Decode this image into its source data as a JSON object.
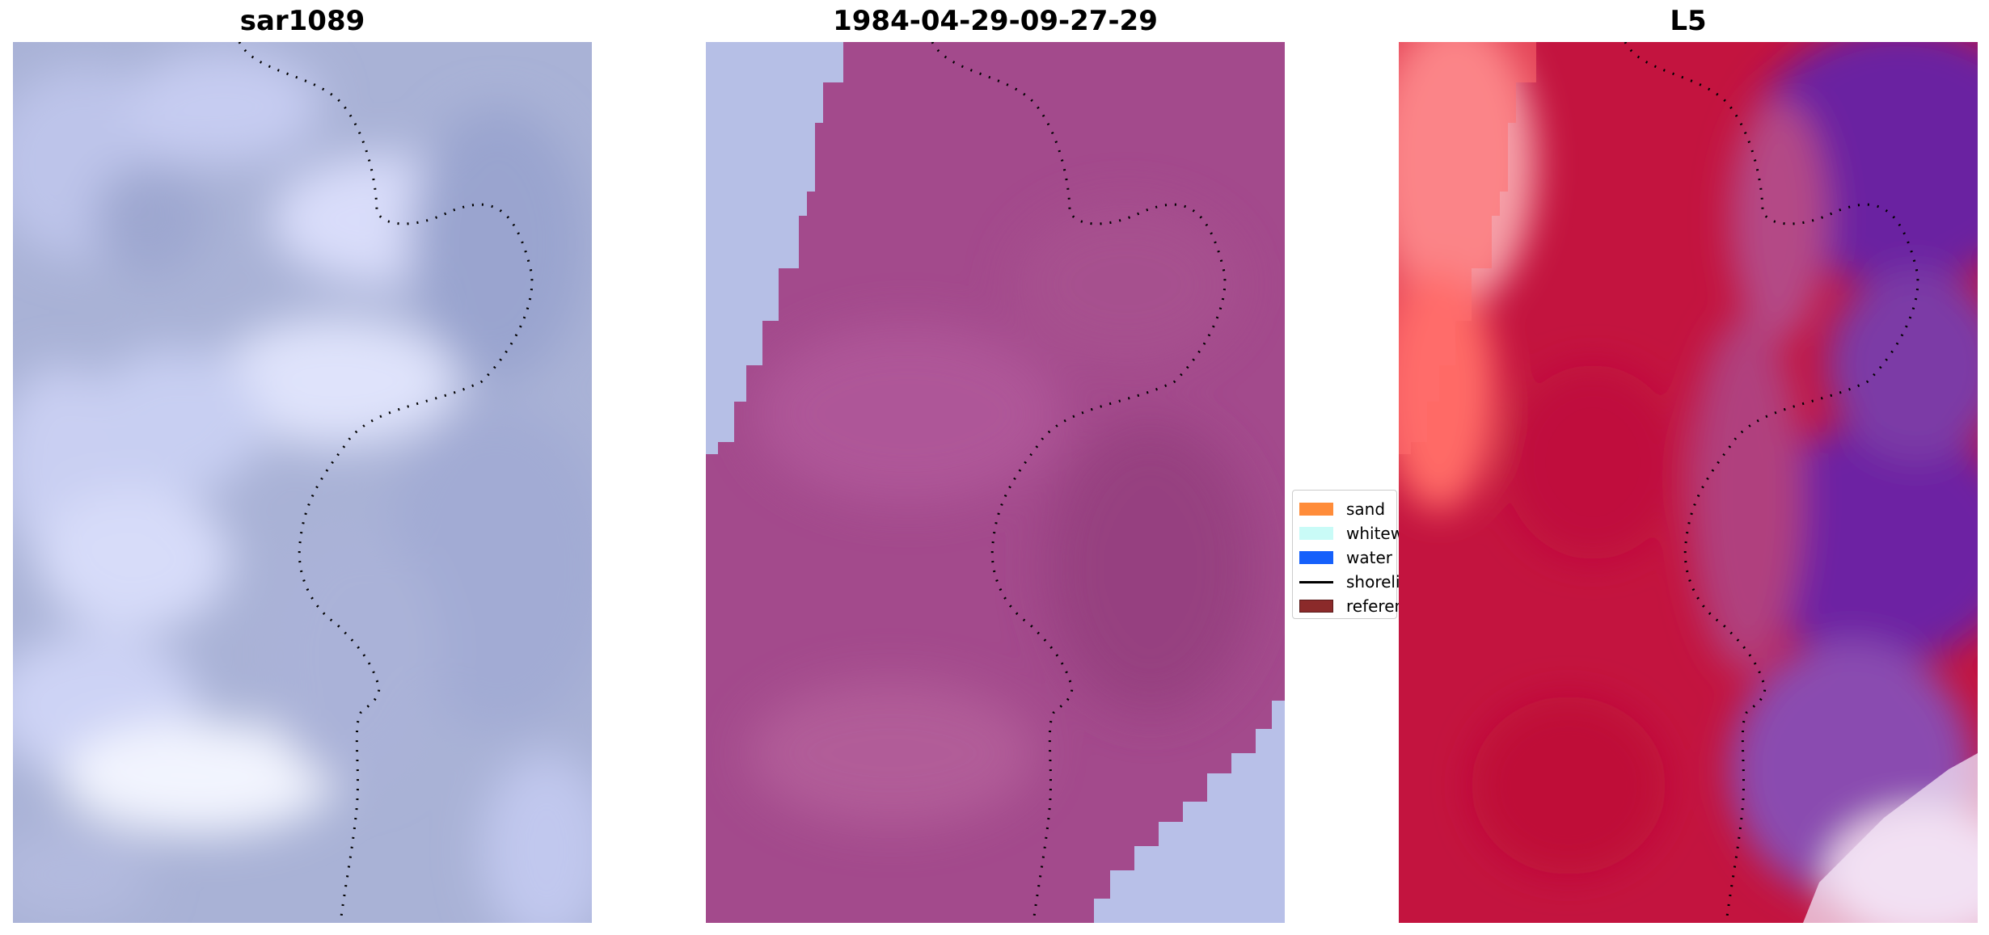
{
  "panels": [
    {
      "title": "sar1089"
    },
    {
      "title": "1984-04-29-09-27-29"
    },
    {
      "title": "L5"
    }
  ],
  "legend": {
    "items": [
      {
        "label": "sand",
        "color": "#ff8c3a",
        "kind": "patch"
      },
      {
        "label": "whitewater",
        "color": "#c9fbf7",
        "kind": "patch"
      },
      {
        "label": "water",
        "color": "#1560fb",
        "kind": "patch"
      },
      {
        "label": "shoreline",
        "color": "#000000",
        "kind": "line"
      },
      {
        "label": "reference",
        "color": "#8b2a2a",
        "kind": "patch"
      }
    ]
  },
  "colors": {
    "left_panel_base": "#a8b1d6",
    "left_panel_light": "#e6e9fc",
    "middle_panel_overlay": "#a24a8c",
    "middle_panel_light": "#b6bfe6",
    "right_panel_red": "#c0103e",
    "right_panel_purple": "#6a22a0",
    "right_panel_light_red": "#ff5a5a"
  }
}
